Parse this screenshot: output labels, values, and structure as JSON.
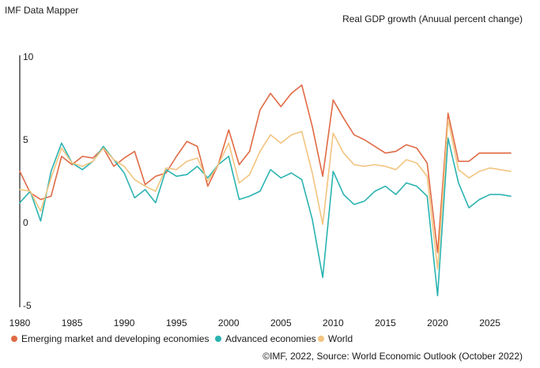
{
  "header": {
    "source_title": "IMF Data Mapper",
    "chart_title": "Real GDP growth (Anuual percent change)"
  },
  "footer": {
    "credit": "©IMF, 2022, Source: World Economic Outlook (October 2022)"
  },
  "chart_data": {
    "type": "line",
    "title": "Real GDP growth (Anuual percent change)",
    "xlabel": "",
    "ylabel": "",
    "xlim": [
      1980,
      2027
    ],
    "ylim": [
      -5,
      10
    ],
    "x_ticks": [
      1980,
      1985,
      1990,
      1995,
      2000,
      2005,
      2010,
      2015,
      2020,
      2025
    ],
    "y_ticks": [
      -5,
      0,
      5,
      10
    ],
    "grid": false,
    "legend_position": "bottom-left",
    "x": [
      1980,
      1981,
      1982,
      1983,
      1984,
      1985,
      1986,
      1987,
      1988,
      1989,
      1990,
      1991,
      1992,
      1993,
      1994,
      1995,
      1996,
      1997,
      1998,
      1999,
      2000,
      2001,
      2002,
      2003,
      2004,
      2005,
      2006,
      2007,
      2008,
      2009,
      2010,
      2011,
      2012,
      2013,
      2014,
      2015,
      2016,
      2017,
      2018,
      2019,
      2020,
      2021,
      2022,
      2023,
      2024,
      2025,
      2026,
      2027
    ],
    "series": [
      {
        "name": "Emerging market and developing economies",
        "color": "#e06a45",
        "values": [
          3.1,
          1.8,
          1.4,
          1.6,
          4.0,
          3.5,
          4.0,
          3.9,
          4.5,
          3.4,
          3.9,
          4.3,
          2.3,
          2.8,
          3.0,
          4.0,
          4.9,
          4.6,
          2.2,
          3.5,
          5.6,
          3.5,
          4.3,
          6.8,
          7.8,
          7.0,
          7.8,
          8.3,
          5.8,
          2.8,
          7.4,
          6.3,
          5.3,
          5.0,
          4.6,
          4.2,
          4.3,
          4.7,
          4.5,
          3.6,
          -1.8,
          6.6,
          3.7,
          3.7,
          4.2,
          4.2,
          4.2,
          4.2
        ]
      },
      {
        "name": "Advanced economies",
        "color": "#2ab3b1",
        "values": [
          1.2,
          1.9,
          0.1,
          3.1,
          4.8,
          3.6,
          3.2,
          3.7,
          4.6,
          3.8,
          3.0,
          1.5,
          2.0,
          1.2,
          3.2,
          2.8,
          2.9,
          3.4,
          2.7,
          3.5,
          4.0,
          1.4,
          1.6,
          1.9,
          3.2,
          2.7,
          3.0,
          2.6,
          0.2,
          -3.3,
          3.1,
          1.7,
          1.1,
          1.3,
          1.9,
          2.2,
          1.7,
          2.4,
          2.2,
          1.6,
          -4.4,
          5.1,
          2.4,
          0.9,
          1.4,
          1.7,
          1.7,
          1.6
        ]
      },
      {
        "name": "World",
        "color": "#f2c47f",
        "values": [
          2.0,
          1.9,
          0.7,
          2.7,
          4.5,
          3.6,
          3.4,
          3.7,
          4.5,
          3.8,
          3.4,
          2.6,
          2.2,
          1.9,
          3.3,
          3.2,
          3.7,
          3.9,
          2.5,
          3.5,
          4.8,
          2.4,
          2.9,
          4.3,
          5.3,
          4.8,
          5.3,
          5.5,
          3.0,
          -0.1,
          5.4,
          4.2,
          3.5,
          3.4,
          3.5,
          3.4,
          3.2,
          3.8,
          3.6,
          2.8,
          -2.8,
          6.2,
          3.2,
          2.7,
          3.1,
          3.3,
          3.2,
          3.1
        ]
      }
    ]
  }
}
